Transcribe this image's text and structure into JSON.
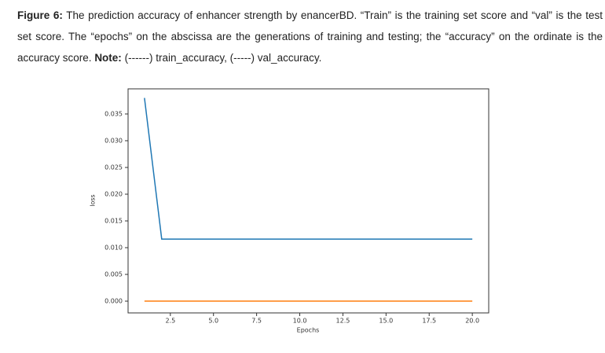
{
  "caption": {
    "label": "Figure 6:",
    "text": "The prediction accuracy of enhancer strength by enancerBD. “Train” is the training set score and “val” is the test set score. The “epochs” on the abscissa are the generations of training and testing; the “accuracy” on the ordinate is the accuracy score.",
    "note_label": "Note:",
    "note_text": "(------) train_accuracy, (-----) val_accuracy."
  },
  "chart_data": {
    "type": "line",
    "xlabel": "Epochs",
    "ylabel": "loss",
    "x": [
      1,
      2,
      3,
      4,
      5,
      6,
      7,
      8,
      9,
      10,
      11,
      12,
      13,
      14,
      15,
      16,
      17,
      18,
      19,
      20
    ],
    "series": [
      {
        "color": "#1f77b4",
        "values": [
          0.038,
          0.0116,
          0.0116,
          0.0116,
          0.0116,
          0.0116,
          0.0116,
          0.0116,
          0.0116,
          0.0116,
          0.0116,
          0.0116,
          0.0116,
          0.0116,
          0.0116,
          0.0116,
          0.0116,
          0.0116,
          0.0116,
          0.0116
        ]
      },
      {
        "color": "#ff7f0e",
        "values": [
          0,
          0,
          0,
          0,
          0,
          0,
          0,
          0,
          0,
          0,
          0,
          0,
          0,
          0,
          0,
          0,
          0,
          0,
          0,
          0
        ]
      }
    ],
    "xlim": [
      0.05,
      20.95
    ],
    "ylim": [
      -0.0022,
      0.0397
    ],
    "xticks": [
      2.5,
      {
        "value": 5,
        "label": "5.0"
      },
      7.5,
      {
        "value": 10,
        "label": "10.0"
      },
      12.5,
      {
        "value": 15,
        "label": "15.0"
      },
      17.5,
      {
        "value": 20,
        "label": "20.0"
      }
    ],
    "yticks": [
      {
        "value": 0,
        "label": "0.000"
      },
      0.005,
      {
        "value": 0.01,
        "label": "0.010"
      },
      0.015,
      {
        "value": 0.02,
        "label": "0.020"
      },
      0.025,
      {
        "value": 0.03,
        "label": "0.030"
      },
      0.035
    ]
  }
}
